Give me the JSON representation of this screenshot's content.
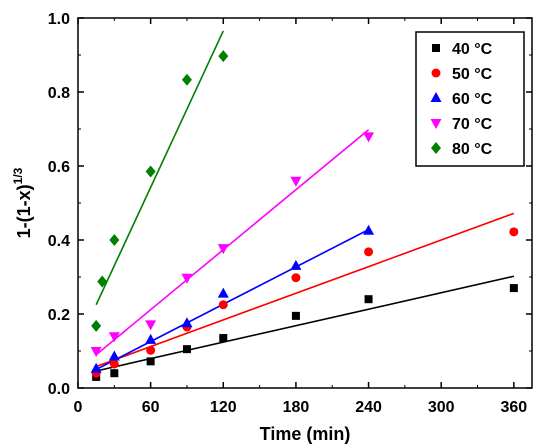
{
  "chart_data": {
    "type": "scatter",
    "xlabel": "Time (min)",
    "ylabel": "1-(1-x)",
    "ylabel_sup": "1/3",
    "xlim": [
      0,
      375
    ],
    "ylim": [
      0,
      1.0
    ],
    "xticks": [
      0,
      60,
      120,
      180,
      240,
      300,
      360
    ],
    "yticks": [
      0.0,
      0.2,
      0.4,
      0.6,
      0.8,
      1.0
    ],
    "xtick_labels": [
      "0",
      "60",
      "120",
      "180",
      "240",
      "300",
      "360"
    ],
    "ytick_labels": [
      "0.0",
      "0.2",
      "0.4",
      "0.6",
      "0.8",
      "1.0"
    ],
    "legend_position": "top-right",
    "series": [
      {
        "name": "40 °C",
        "marker": "square",
        "color": "#000000",
        "x": [
          15,
          30,
          60,
          90,
          120,
          180,
          240,
          360
        ],
        "y": [
          0.03,
          0.04,
          0.072,
          0.105,
          0.135,
          0.195,
          0.24,
          0.27
        ],
        "fit": {
          "x": [
            15,
            360
          ],
          "y": [
            0.046,
            0.302
          ]
        }
      },
      {
        "name": "50 °C",
        "marker": "circle",
        "color": "#ff0000",
        "x": [
          15,
          30,
          60,
          90,
          120,
          180,
          240,
          360
        ],
        "y": [
          0.04,
          0.065,
          0.102,
          0.165,
          0.225,
          0.298,
          0.368,
          0.422
        ],
        "fit": {
          "x": [
            15,
            360
          ],
          "y": [
            0.058,
            0.472
          ]
        }
      },
      {
        "name": "60 °C",
        "marker": "triangle-up",
        "color": "#0000ff",
        "x": [
          15,
          30,
          60,
          90,
          120,
          180,
          240
        ],
        "y": [
          0.052,
          0.085,
          0.13,
          0.175,
          0.255,
          0.33,
          0.425
        ],
        "fit": {
          "x": [
            15,
            240
          ],
          "y": [
            0.05,
            0.428
          ]
        }
      },
      {
        "name": "70 °C",
        "marker": "triangle-down",
        "color": "#ff00ff",
        "x": [
          15,
          30,
          60,
          90,
          120,
          180,
          240
        ],
        "y": [
          0.1,
          0.14,
          0.172,
          0.298,
          0.378,
          0.56,
          0.68
        ],
        "fit": {
          "x": [
            15,
            240
          ],
          "y": [
            0.09,
            0.698
          ]
        }
      },
      {
        "name": "80 °C",
        "marker": "diamond",
        "color": "#008000",
        "x": [
          15,
          20,
          30,
          60,
          90,
          120
        ],
        "y": [
          0.168,
          0.288,
          0.4,
          0.585,
          0.833,
          0.897
        ],
        "fit": {
          "x": [
            15,
            120
          ],
          "y": [
            0.225,
            0.965
          ]
        }
      }
    ]
  }
}
